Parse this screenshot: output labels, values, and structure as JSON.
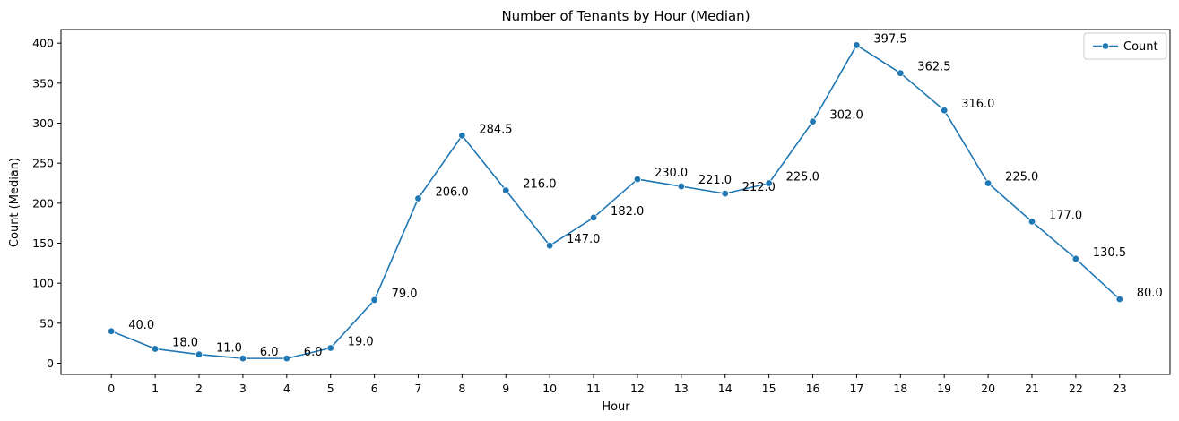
{
  "chart_data": {
    "type": "line",
    "title": "Number of Tenants by Hour (Median)",
    "xlabel": "Hour",
    "ylabel": "Count (Median)",
    "x": [
      0,
      1,
      2,
      3,
      4,
      5,
      6,
      7,
      8,
      9,
      10,
      11,
      12,
      13,
      14,
      15,
      16,
      17,
      18,
      19,
      20,
      21,
      22,
      23
    ],
    "x_tick_labels": [
      "0",
      "1",
      "2",
      "3",
      "4",
      "5",
      "6",
      "7",
      "8",
      "9",
      "10",
      "11",
      "12",
      "13",
      "14",
      "15",
      "16",
      "17",
      "18",
      "19",
      "20",
      "21",
      "22",
      "23"
    ],
    "series": [
      {
        "name": "Count",
        "color": "#1f77b4",
        "marker": "circle",
        "values": [
          40.0,
          18.0,
          11.0,
          6.0,
          6.0,
          19.0,
          79.0,
          206.0,
          284.5,
          216.0,
          147.0,
          182.0,
          230.0,
          221.0,
          212.0,
          225.0,
          302.0,
          397.5,
          362.5,
          316.0,
          225.0,
          177.0,
          130.5,
          80.0
        ],
        "labels": [
          "40.0",
          "18.0",
          "11.0",
          "6.0",
          "6.0",
          "19.0",
          "79.0",
          "206.0",
          "284.5",
          "216.0",
          "147.0",
          "182.0",
          "230.0",
          "221.0",
          "212.0",
          "225.0",
          "302.0",
          "397.5",
          "362.5",
          "316.0",
          "225.0",
          "177.0",
          "130.5",
          "80.0"
        ]
      }
    ],
    "xlim": [
      -1.15,
      24.15
    ],
    "ylim": [
      -14,
      417
    ],
    "y_ticks": [
      0,
      50,
      100,
      150,
      200,
      250,
      300,
      350,
      400
    ],
    "y_tick_labels": [
      "0",
      "50",
      "100",
      "150",
      "200",
      "250",
      "300",
      "350",
      "400"
    ],
    "grid": false,
    "legend_position": "top-right"
  }
}
